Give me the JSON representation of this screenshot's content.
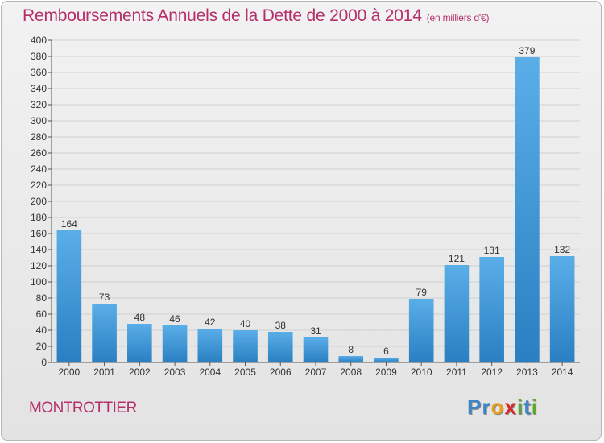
{
  "header": {
    "title": "Remboursements Annuels de la Dette de 2000 à 2014",
    "subtitle": "(en milliers d'€)"
  },
  "footer": {
    "town": "MONTROTTIER",
    "logo_letters": [
      {
        "ch": "P",
        "color": "#3a86c8"
      },
      {
        "ch": "r",
        "color": "#3a86c8"
      },
      {
        "ch": "o",
        "color": "#e8a01c"
      },
      {
        "ch": "x",
        "color": "#d62b2b"
      },
      {
        "ch": "i",
        "color": "#5aa832"
      },
      {
        "ch": "t",
        "color": "#3a86c8"
      },
      {
        "ch": "i",
        "color": "#5aa832"
      }
    ]
  },
  "chart_data": {
    "type": "bar",
    "title": "Remboursements Annuels de la Dette de 2000 à 2014",
    "subtitle": "(en milliers d'€)",
    "categories": [
      "2000",
      "2001",
      "2002",
      "2003",
      "2004",
      "2005",
      "2006",
      "2007",
      "2008",
      "2009",
      "2010",
      "2011",
      "2012",
      "2013",
      "2014"
    ],
    "values": [
      164,
      73,
      48,
      46,
      42,
      40,
      38,
      31,
      8,
      6,
      79,
      121,
      131,
      379,
      132
    ],
    "ylim": [
      0,
      400
    ],
    "yticks": [
      0,
      20,
      40,
      60,
      80,
      100,
      120,
      140,
      160,
      180,
      200,
      220,
      240,
      260,
      280,
      300,
      320,
      340,
      360,
      380,
      400
    ],
    "grid": true,
    "bar_color": "#3f99dc",
    "data_labels": true
  }
}
